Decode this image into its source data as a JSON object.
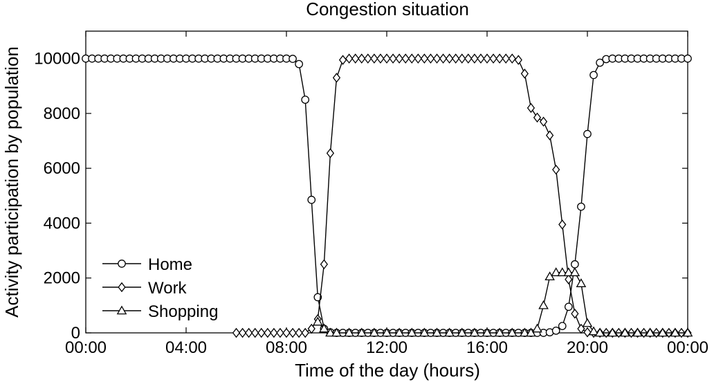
{
  "chart_data": {
    "type": "line",
    "title": "Congestion situation",
    "xlabel": "Time of the day (hours)",
    "ylabel": "Activity participation by population",
    "x_unit": "hours",
    "xlim": [
      0,
      24
    ],
    "ylim": [
      0,
      11000
    ],
    "x_ticks": [
      {
        "value": 0,
        "label": "00:00"
      },
      {
        "value": 4,
        "label": "04:00"
      },
      {
        "value": 8,
        "label": "08:00"
      },
      {
        "value": 12,
        "label": "12:00"
      },
      {
        "value": 16,
        "label": "16:00"
      },
      {
        "value": 20,
        "label": "20:00"
      },
      {
        "value": 24,
        "label": "00:00"
      }
    ],
    "y_ticks": [
      {
        "value": 0,
        "label": "0"
      },
      {
        "value": 2000,
        "label": "2000"
      },
      {
        "value": 4000,
        "label": "4000"
      },
      {
        "value": 6000,
        "label": "6000"
      },
      {
        "value": 8000,
        "label": "8000"
      },
      {
        "value": 10000,
        "label": "10000"
      }
    ],
    "grid": false,
    "legend_position": "bottom-left",
    "series": [
      {
        "name": "Home",
        "marker": "circle",
        "points": [
          [
            0,
            10000
          ],
          [
            0.25,
            10000
          ],
          [
            0.5,
            10000
          ],
          [
            0.75,
            10000
          ],
          [
            1,
            10000
          ],
          [
            1.25,
            10000
          ],
          [
            1.5,
            10000
          ],
          [
            1.75,
            10000
          ],
          [
            2,
            10000
          ],
          [
            2.25,
            10000
          ],
          [
            2.5,
            10000
          ],
          [
            2.75,
            10000
          ],
          [
            3,
            10000
          ],
          [
            3.25,
            10000
          ],
          [
            3.5,
            10000
          ],
          [
            3.75,
            10000
          ],
          [
            4,
            10000
          ],
          [
            4.25,
            10000
          ],
          [
            4.5,
            10000
          ],
          [
            4.75,
            10000
          ],
          [
            5,
            10000
          ],
          [
            5.25,
            10000
          ],
          [
            5.5,
            10000
          ],
          [
            5.75,
            10000
          ],
          [
            6,
            10000
          ],
          [
            6.25,
            10000
          ],
          [
            6.5,
            10000
          ],
          [
            6.75,
            10000
          ],
          [
            7,
            10000
          ],
          [
            7.25,
            10000
          ],
          [
            7.5,
            10000
          ],
          [
            7.75,
            10000
          ],
          [
            8,
            10000
          ],
          [
            8.25,
            9990
          ],
          [
            8.5,
            9800
          ],
          [
            8.75,
            8500
          ],
          [
            9,
            4850
          ],
          [
            9.25,
            1300
          ],
          [
            9.5,
            150
          ],
          [
            9.75,
            20
          ],
          [
            10,
            0
          ],
          [
            10.25,
            0
          ],
          [
            10.5,
            0
          ],
          [
            10.75,
            0
          ],
          [
            11,
            0
          ],
          [
            11.25,
            0
          ],
          [
            11.5,
            0
          ],
          [
            11.75,
            0
          ],
          [
            12,
            0
          ],
          [
            12.25,
            0
          ],
          [
            12.5,
            0
          ],
          [
            12.75,
            0
          ],
          [
            13,
            0
          ],
          [
            13.25,
            0
          ],
          [
            13.5,
            0
          ],
          [
            13.75,
            0
          ],
          [
            14,
            0
          ],
          [
            14.25,
            0
          ],
          [
            14.5,
            0
          ],
          [
            14.75,
            0
          ],
          [
            15,
            0
          ],
          [
            15.25,
            0
          ],
          [
            15.5,
            0
          ],
          [
            15.75,
            0
          ],
          [
            16,
            0
          ],
          [
            16.25,
            0
          ],
          [
            16.5,
            0
          ],
          [
            16.75,
            0
          ],
          [
            17,
            0
          ],
          [
            17.25,
            0
          ],
          [
            17.5,
            0
          ],
          [
            17.75,
            0
          ],
          [
            18,
            0
          ],
          [
            18.25,
            0
          ],
          [
            18.5,
            20
          ],
          [
            18.75,
            80
          ],
          [
            19,
            250
          ],
          [
            19.25,
            950
          ],
          [
            19.5,
            2500
          ],
          [
            19.75,
            4600
          ],
          [
            20,
            7250
          ],
          [
            20.25,
            9400
          ],
          [
            20.5,
            9850
          ],
          [
            20.75,
            9980
          ],
          [
            21,
            10000
          ],
          [
            21.25,
            10000
          ],
          [
            21.5,
            10000
          ],
          [
            21.75,
            10000
          ],
          [
            22,
            10000
          ],
          [
            22.25,
            10000
          ],
          [
            22.5,
            10000
          ],
          [
            22.75,
            10000
          ],
          [
            23,
            10000
          ],
          [
            23.25,
            10000
          ],
          [
            23.5,
            10000
          ],
          [
            23.75,
            10000
          ],
          [
            24,
            10000
          ]
        ]
      },
      {
        "name": "Work",
        "marker": "diamond",
        "points": [
          [
            6,
            0
          ],
          [
            6.25,
            0
          ],
          [
            6.5,
            0
          ],
          [
            6.75,
            0
          ],
          [
            7,
            0
          ],
          [
            7.25,
            0
          ],
          [
            7.5,
            0
          ],
          [
            7.75,
            0
          ],
          [
            8,
            0
          ],
          [
            8.25,
            0
          ],
          [
            8.5,
            0
          ],
          [
            8.75,
            0
          ],
          [
            9,
            150
          ],
          [
            9.25,
            500
          ],
          [
            9.5,
            2500
          ],
          [
            9.75,
            6550
          ],
          [
            10,
            9300
          ],
          [
            10.25,
            9950
          ],
          [
            10.5,
            10000
          ],
          [
            10.75,
            10000
          ],
          [
            11,
            10000
          ],
          [
            11.25,
            10000
          ],
          [
            11.5,
            10000
          ],
          [
            11.75,
            10000
          ],
          [
            12,
            10000
          ],
          [
            12.25,
            10000
          ],
          [
            12.5,
            10000
          ],
          [
            12.75,
            10000
          ],
          [
            13,
            10000
          ],
          [
            13.25,
            10000
          ],
          [
            13.5,
            10000
          ],
          [
            13.75,
            10000
          ],
          [
            14,
            10000
          ],
          [
            14.25,
            10000
          ],
          [
            14.5,
            10000
          ],
          [
            14.75,
            10000
          ],
          [
            15,
            10000
          ],
          [
            15.25,
            10000
          ],
          [
            15.5,
            10000
          ],
          [
            15.75,
            10000
          ],
          [
            16,
            10000
          ],
          [
            16.25,
            10000
          ],
          [
            16.5,
            10000
          ],
          [
            16.75,
            10000
          ],
          [
            17,
            10000
          ],
          [
            17.25,
            9950
          ],
          [
            17.5,
            9450
          ],
          [
            17.75,
            8200
          ],
          [
            18,
            7850
          ],
          [
            18.25,
            7700
          ],
          [
            18.5,
            7200
          ],
          [
            18.75,
            5950
          ],
          [
            19,
            3950
          ],
          [
            19.25,
            1950
          ],
          [
            19.5,
            700
          ],
          [
            19.75,
            150
          ],
          [
            20,
            20
          ],
          [
            20.25,
            0
          ],
          [
            20.5,
            0
          ],
          [
            20.75,
            0
          ],
          [
            21,
            0
          ],
          [
            21.25,
            0
          ],
          [
            21.5,
            0
          ],
          [
            21.75,
            0
          ],
          [
            22,
            0
          ],
          [
            22.25,
            0
          ],
          [
            22.5,
            0
          ],
          [
            22.75,
            0
          ],
          [
            23,
            0
          ],
          [
            23.25,
            0
          ],
          [
            23.5,
            0
          ],
          [
            23.75,
            0
          ],
          [
            24,
            0
          ]
        ]
      },
      {
        "name": "Shopping",
        "marker": "triangle",
        "points": [
          [
            9.25,
            400
          ],
          [
            9.5,
            150
          ],
          [
            9.75,
            0
          ],
          [
            10,
            0
          ],
          [
            10.5,
            0
          ],
          [
            11,
            0
          ],
          [
            11.5,
            0
          ],
          [
            12,
            0
          ],
          [
            12.5,
            0
          ],
          [
            13,
            0
          ],
          [
            13.5,
            0
          ],
          [
            14,
            0
          ],
          [
            14.5,
            0
          ],
          [
            15,
            0
          ],
          [
            15.5,
            0
          ],
          [
            16,
            0
          ],
          [
            16.5,
            0
          ],
          [
            17,
            0
          ],
          [
            17.5,
            0
          ],
          [
            17.75,
            0
          ],
          [
            18,
            150
          ],
          [
            18.25,
            1000
          ],
          [
            18.5,
            2050
          ],
          [
            18.75,
            2200
          ],
          [
            19,
            2200
          ],
          [
            19.25,
            2200
          ],
          [
            19.5,
            2200
          ],
          [
            19.75,
            1800
          ],
          [
            20,
            350
          ],
          [
            20.25,
            50
          ],
          [
            20.5,
            0
          ],
          [
            21,
            0
          ],
          [
            21.5,
            0
          ],
          [
            22,
            0
          ],
          [
            22.5,
            0
          ],
          [
            23,
            0
          ],
          [
            23.5,
            0
          ],
          [
            24,
            0
          ]
        ]
      }
    ]
  }
}
